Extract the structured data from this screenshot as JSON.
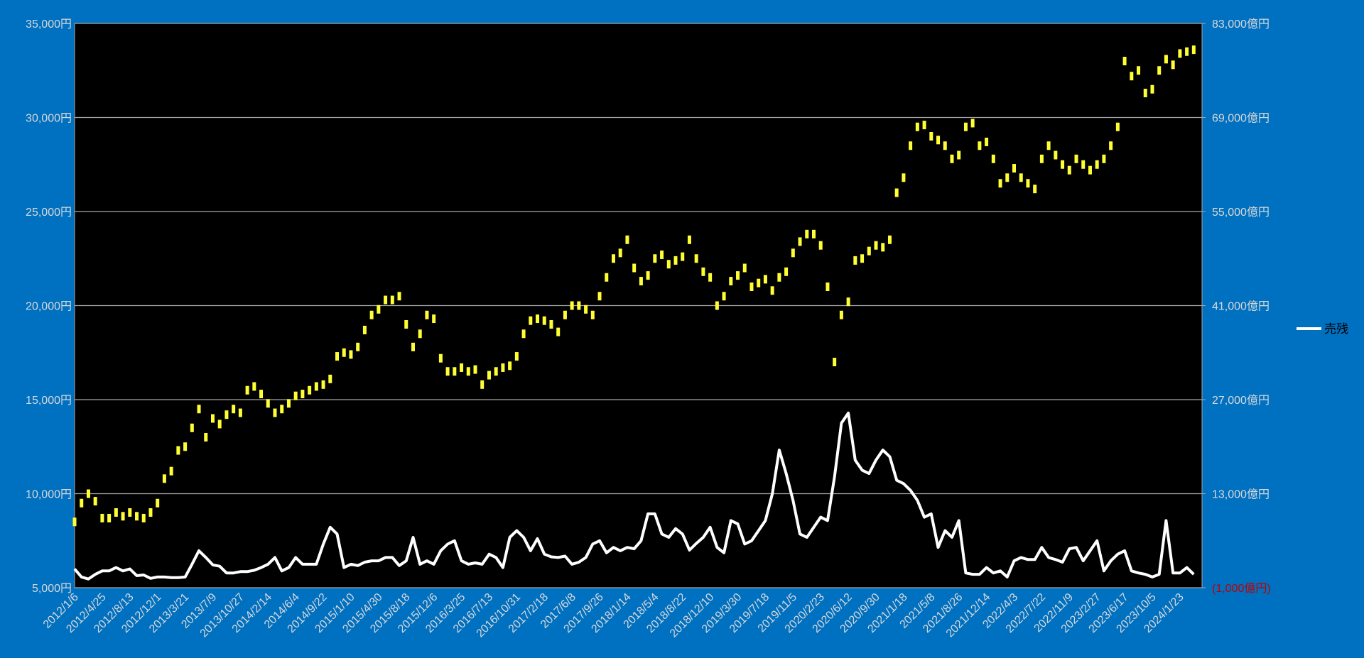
{
  "chart_data": {
    "type": "line",
    "legend": "right",
    "grid": true,
    "categories": [
      "2012/1/6",
      null,
      null,
      null,
      "2012/4/25",
      null,
      null,
      null,
      "2012/8/13",
      null,
      null,
      null,
      "2012/12/1",
      null,
      null,
      null,
      "2013/3/21",
      null,
      null,
      null,
      "2013/7/9",
      null,
      null,
      null,
      "2013/10/27",
      null,
      null,
      null,
      "2014/2/14",
      null,
      null,
      null,
      "2014/6/4",
      null,
      null,
      null,
      "2014/9/22",
      null,
      null,
      null,
      "2015/1/10",
      null,
      null,
      null,
      "2015/4/30",
      null,
      null,
      null,
      "2015/8/18",
      null,
      null,
      null,
      "2015/12/6",
      null,
      null,
      null,
      "2016/3/25",
      null,
      null,
      null,
      "2016/7/13",
      null,
      null,
      null,
      "2016/10/31",
      null,
      null,
      null,
      "2017/2/18",
      null,
      null,
      null,
      "2017/6/8",
      null,
      null,
      null,
      "2017/9/26",
      null,
      null,
      null,
      "2018/1/14",
      null,
      null,
      null,
      "2018/5/4",
      null,
      null,
      null,
      "2018/8/22",
      null,
      null,
      null,
      "2018/12/10",
      null,
      null,
      null,
      "2019/3/30",
      null,
      null,
      null,
      "2019/7/18",
      null,
      null,
      null,
      "2019/11/5",
      null,
      null,
      null,
      "2020/2/23",
      null,
      null,
      null,
      "2020/6/12",
      null,
      null,
      null,
      "2020/9/30",
      null,
      null,
      null,
      "2021/1/18",
      null,
      null,
      null,
      "2021/5/8",
      null,
      null,
      null,
      "2021/8/26",
      null,
      null,
      null,
      "2021/12/14",
      null,
      null,
      null,
      "2022/4/3",
      null,
      null,
      null,
      "2022/7/22",
      null,
      null,
      null,
      "2022/11/9",
      null,
      null,
      null,
      "2023/2/27",
      null,
      null,
      null,
      "2023/6/17",
      null,
      null,
      null,
      "2023/10/5",
      null,
      null,
      null,
      "2024/1/23",
      null,
      null
    ],
    "ylim": [
      5000,
      35000
    ],
    "yticks": [
      {
        "value": 5000,
        "label": "5,000円"
      },
      {
        "value": 10000,
        "label": "10,000円"
      },
      {
        "value": 15000,
        "label": "15,000円"
      },
      {
        "value": 20000,
        "label": "20,000円"
      },
      {
        "value": 25000,
        "label": "25,000円"
      },
      {
        "value": 30000,
        "label": "30,000円"
      },
      {
        "value": 35000,
        "label": "35,000円"
      }
    ],
    "y2lim": [
      -1000,
      83000
    ],
    "y2ticks": [
      {
        "value": -1000,
        "label": "(1,000億円)"
      },
      {
        "value": 13000,
        "label": "13,000億円"
      },
      {
        "value": 27000,
        "label": "27,000億円"
      },
      {
        "value": 41000,
        "label": "41,000億円"
      },
      {
        "value": 55000,
        "label": "55,000億円"
      },
      {
        "value": 69000,
        "label": "69,000億円"
      },
      {
        "value": 83000,
        "label": "83,000億円"
      }
    ],
    "series": [
      {
        "color": "#ffff33",
        "mark": "tick",
        "values": [
          8500,
          9500,
          10000,
          9600,
          8700,
          8700,
          9000,
          8800,
          9000,
          8800,
          8700,
          9000,
          9500,
          10800,
          11200,
          12300,
          12500,
          13500,
          14500,
          13000,
          14000,
          13700,
          14200,
          14500,
          14300,
          15500,
          15700,
          15300,
          14800,
          14300,
          14500,
          14800,
          15200,
          15300,
          15500,
          15700,
          15800,
          16100,
          17300,
          17500,
          17400,
          17800,
          18700,
          19500,
          19800,
          20300,
          20300,
          20500,
          19000,
          17800,
          18500,
          19500,
          19300,
          17200,
          16500,
          16500,
          16700,
          16500,
          16600,
          15800,
          16300,
          16500,
          16700,
          16800,
          17300,
          18500,
          19200,
          19300,
          19200,
          19000,
          18600,
          19500,
          20000,
          20000,
          19800,
          19500,
          20500,
          21500,
          22500,
          22800,
          23500,
          22000,
          21300,
          21600,
          22500,
          22700,
          22200,
          22400,
          22600,
          23500,
          22500,
          21800,
          21500,
          20000,
          20500,
          21300,
          21600,
          22000,
          21000,
          21200,
          21400,
          20800,
          21500,
          21800,
          22800,
          23400,
          23800,
          23800,
          23200,
          21000,
          17000,
          19500,
          20200,
          22400,
          22500,
          22900,
          23200,
          23100,
          23500,
          26000,
          26800,
          28500,
          29500,
          29600,
          29000,
          28800,
          28500,
          27800,
          28000,
          29500,
          29700,
          28500,
          28700,
          27800,
          26500,
          26800,
          27300,
          26800,
          26500,
          26200,
          27800,
          28500,
          28000,
          27500,
          27200,
          27800,
          27500,
          27200,
          27500,
          27800,
          28500,
          29500,
          33000,
          32200,
          32500,
          31300,
          31500,
          32500,
          33100,
          32800,
          33400,
          33500,
          33600
        ]
      },
      {
        "name": "売残",
        "color": "#ffffff",
        "mark": "line",
        "axis": "y2",
        "values": [
          1800,
          600,
          300,
          1000,
          1500,
          1500,
          2000,
          1500,
          1800,
          800,
          900,
          400,
          600,
          600,
          500,
          500,
          600,
          2500,
          4500,
          3500,
          2400,
          2200,
          1200,
          1200,
          1400,
          1400,
          1600,
          2000,
          2500,
          3500,
          1500,
          2000,
          3500,
          2500,
          2500,
          2500,
          5500,
          8000,
          7000,
          2000,
          2500,
          2300,
          2800,
          3000,
          3000,
          3500,
          3500,
          2300,
          3000,
          6500,
          2500,
          3000,
          2500,
          4500,
          5500,
          6000,
          3000,
          2500,
          2700,
          2500,
          4000,
          3500,
          2000,
          6500,
          7500,
          6500,
          4500,
          6300,
          4000,
          3600,
          3500,
          3700,
          2500,
          2800,
          3500,
          5500,
          6000,
          4200,
          5000,
          4500,
          5000,
          4800,
          6000,
          10000,
          10000,
          7000,
          6500,
          7800,
          7000,
          4600,
          5600,
          6500,
          8000,
          5000,
          4200,
          9000,
          8500,
          5500,
          6000,
          7500,
          9000,
          13000,
          19500,
          16000,
          12000,
          7000,
          6500,
          8000,
          9500,
          9000,
          15500,
          23500,
          25000,
          18000,
          16500,
          16000,
          18000,
          19500,
          18500,
          15000,
          14500,
          13500,
          12000,
          9500,
          10000,
          5000,
          7500,
          6500,
          9000,
          1200,
          1000,
          1000,
          2000,
          1200,
          1500,
          600,
          3000,
          3500,
          3200,
          3200,
          5000,
          3500,
          3200,
          2800,
          4800,
          5000,
          3000,
          4500,
          6000,
          1500,
          3000,
          4000,
          4500,
          1500,
          1200,
          1000,
          600,
          1000,
          9000,
          1200,
          1200,
          2000,
          1000
        ]
      }
    ]
  }
}
